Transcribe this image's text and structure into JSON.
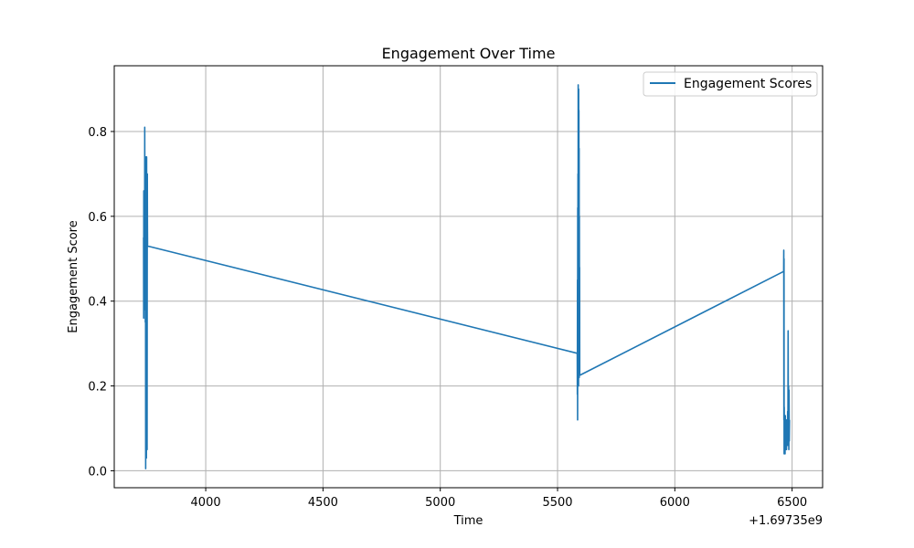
{
  "chart_data": {
    "type": "line",
    "title": "Engagement Over Time",
    "xlabel": "Time",
    "ylabel": "Engagement Score",
    "x_offset_label": "+1.69735e9",
    "xlim": [
      3610,
      6630
    ],
    "ylim": [
      -0.04,
      0.955
    ],
    "x_ticks": [
      4000,
      4500,
      5000,
      5500,
      6000,
      6500
    ],
    "x_tick_labels": [
      "4000",
      "4500",
      "5000",
      "5500",
      "6000",
      "6500"
    ],
    "y_ticks": [
      0.0,
      0.2,
      0.4,
      0.6,
      0.8
    ],
    "y_tick_labels": [
      "0.0",
      "0.2",
      "0.4",
      "0.6",
      "0.8"
    ],
    "grid": true,
    "legend": "top-right",
    "series": [
      {
        "name": "Engagement Scores",
        "color": "#1f77b4",
        "x": [
          3735,
          3735.5,
          3736,
          3736.5,
          3737,
          3737.5,
          3738,
          3738.5,
          3739,
          3739.5,
          3740,
          3740.5,
          3741,
          3741.5,
          3742,
          3742.5,
          3743,
          3743.5,
          3744,
          3744.5,
          3745,
          3745.5,
          3746,
          3746.5,
          3747,
          3747.5,
          3748,
          3748.5,
          3749,
          3749.5,
          3750,
          3750.5,
          3751,
          3751.5,
          3752,
          5584,
          5584.5,
          5585,
          5585.5,
          5586,
          5586.5,
          5587,
          5587.5,
          5588,
          5588.5,
          5589,
          5589.5,
          5590,
          5590.5,
          5591,
          5591.5,
          5592,
          5592.5,
          5593,
          5593.5,
          5594,
          5594.5,
          6464,
          6464.5,
          6465,
          6465.5,
          6466,
          6466.5,
          6467,
          6467.5,
          6468,
          6469,
          6470,
          6471,
          6472,
          6473,
          6474,
          6475,
          6476,
          6477,
          6478,
          6479,
          6480,
          6481,
          6482,
          6483,
          6484,
          6485,
          6486,
          6487,
          6488,
          6489
        ],
        "y": [
          0.55,
          0.36,
          0.66,
          0.38,
          0.52,
          0.64,
          0.43,
          0.5,
          0.57,
          0.46,
          0.81,
          0.62,
          0.38,
          0.7,
          0.52,
          0.35,
          0.6,
          0.45,
          0.005,
          0.3,
          0.68,
          0.74,
          0.2,
          0.5,
          0.03,
          0.62,
          0.74,
          0.55,
          0.44,
          0.6,
          0.05,
          0.48,
          0.7,
          0.58,
          0.53,
          0.277,
          0.18,
          0.45,
          0.12,
          0.62,
          0.22,
          0.7,
          0.38,
          0.91,
          0.27,
          0.64,
          0.2,
          0.9,
          0.45,
          0.85,
          0.3,
          0.76,
          0.22,
          0.6,
          0.39,
          0.48,
          0.225,
          0.47,
          0.52,
          0.12,
          0.5,
          0.04,
          0.15,
          0.06,
          0.11,
          0.05,
          0.09,
          0.04,
          0.13,
          0.05,
          0.1,
          0.07,
          0.12,
          0.05,
          0.09,
          0.06,
          0.11,
          0.08,
          0.14,
          0.06,
          0.33,
          0.1,
          0.2,
          0.05,
          0.19,
          0.07,
          0.12
        ]
      }
    ]
  }
}
